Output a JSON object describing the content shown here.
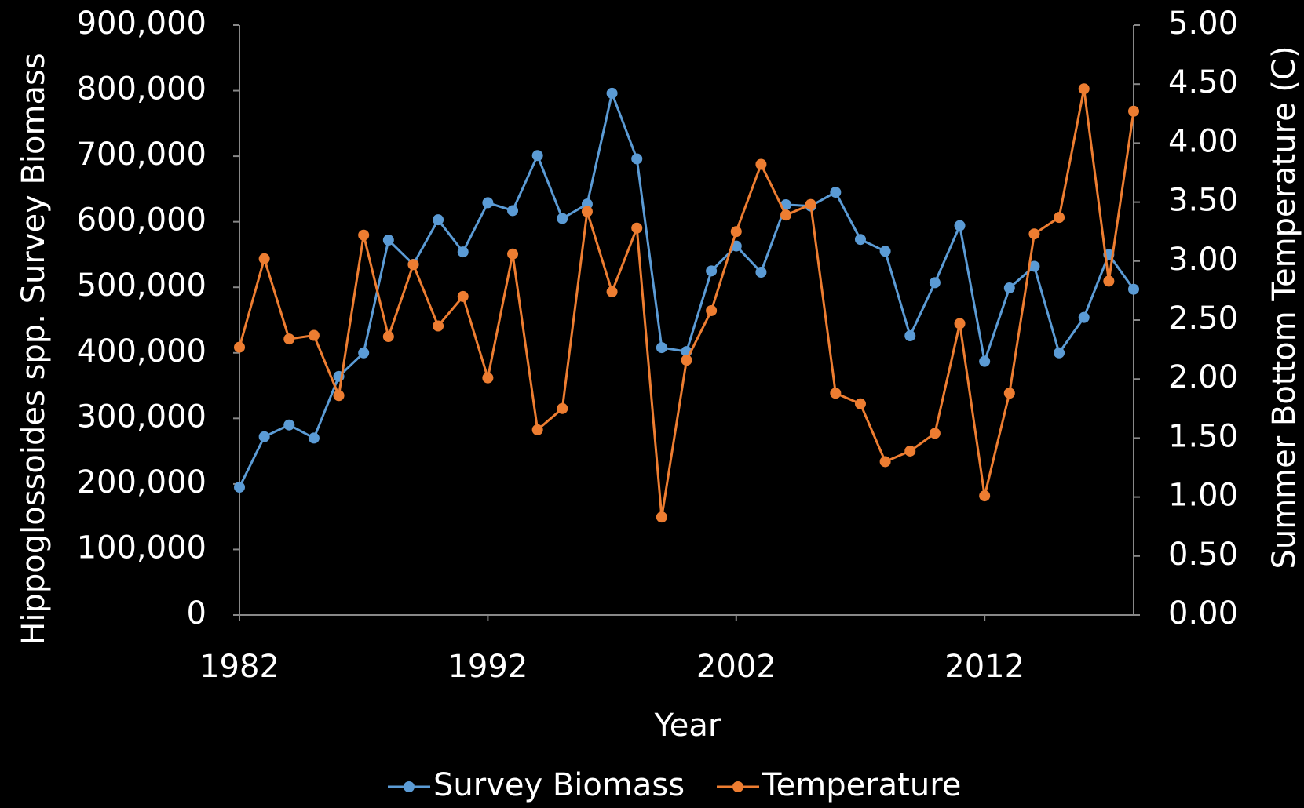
{
  "chart_data": {
    "type": "line",
    "x_label": "Year",
    "y_label": "Hippoglossoides spp. Survey Biomass",
    "y2_label": "Summer Bottom Temperature (C)",
    "x": [
      1982,
      1983,
      1984,
      1985,
      1986,
      1987,
      1988,
      1989,
      1990,
      1991,
      1992,
      1993,
      1994,
      1995,
      1996,
      1997,
      1998,
      1999,
      2000,
      2001,
      2002,
      2003,
      2004,
      2005,
      2006,
      2007,
      2008,
      2009,
      2010,
      2011,
      2012,
      2013,
      2014,
      2015,
      2016,
      2017,
      2018
    ],
    "series": [
      {
        "name": "Survey Biomass",
        "color": "#5b9bd5",
        "values": [
          195000,
          272000,
          290000,
          270000,
          364000,
          400000,
          572000,
          535000,
          603000,
          554000,
          629000,
          617000,
          701000,
          605000,
          627000,
          796000,
          696000,
          408000,
          402000,
          525000,
          563000,
          523000,
          626000,
          624000,
          645000,
          573000,
          555000,
          426000,
          507000,
          594000,
          387000,
          499000,
          532000,
          400000,
          454000,
          550000,
          497000
        ]
      },
      {
        "name": "Temperature",
        "color": "#ed7d31",
        "axis": "y2",
        "values": [
          2.27,
          3.02,
          2.34,
          2.37,
          1.86,
          3.22,
          2.36,
          2.97,
          2.45,
          2.7,
          2.01,
          3.06,
          1.57,
          1.75,
          3.42,
          2.74,
          3.28,
          0.83,
          2.16,
          2.58,
          3.25,
          3.82,
          3.39,
          3.48,
          1.88,
          1.79,
          1.3,
          1.39,
          1.54,
          2.47,
          1.01,
          1.88,
          3.23,
          3.37,
          4.46,
          2.83,
          4.27
        ]
      }
    ],
    "xlim": [
      1982,
      2018
    ],
    "xticks": [
      1982,
      1992,
      2002,
      2012
    ],
    "ylim": [
      0,
      900000
    ],
    "yticks": [
      0,
      {
        "value": 100000,
        "label": "100,000"
      },
      {
        "value": 200000,
        "label": "200,000"
      },
      {
        "value": 300000,
        "label": "300,000"
      },
      {
        "value": 400000,
        "label": "400,000"
      },
      {
        "value": 500000,
        "label": "500,000"
      },
      {
        "value": 600000,
        "label": "600,000"
      },
      {
        "value": 700000,
        "label": "700,000"
      },
      {
        "value": 800000,
        "label": "800,000"
      },
      {
        "value": 900000,
        "label": "900,000"
      }
    ],
    "y2lim": [
      0,
      5
    ],
    "y2ticks": [
      {
        "value": 0,
        "label": "0.00"
      },
      {
        "value": 0.5,
        "label": "0.50"
      },
      {
        "value": 1,
        "label": "1.00"
      },
      {
        "value": 1.5,
        "label": "1.50"
      },
      {
        "value": 2,
        "label": "2.00"
      },
      {
        "value": 2.5,
        "label": "2.50"
      },
      {
        "value": 3,
        "label": "3.00"
      },
      {
        "value": 3.5,
        "label": "3.50"
      },
      {
        "value": 4,
        "label": "4.00"
      },
      {
        "value": 4.5,
        "label": "4.50"
      },
      {
        "value": 5,
        "label": "5.00"
      }
    ],
    "legend": "bottom"
  }
}
